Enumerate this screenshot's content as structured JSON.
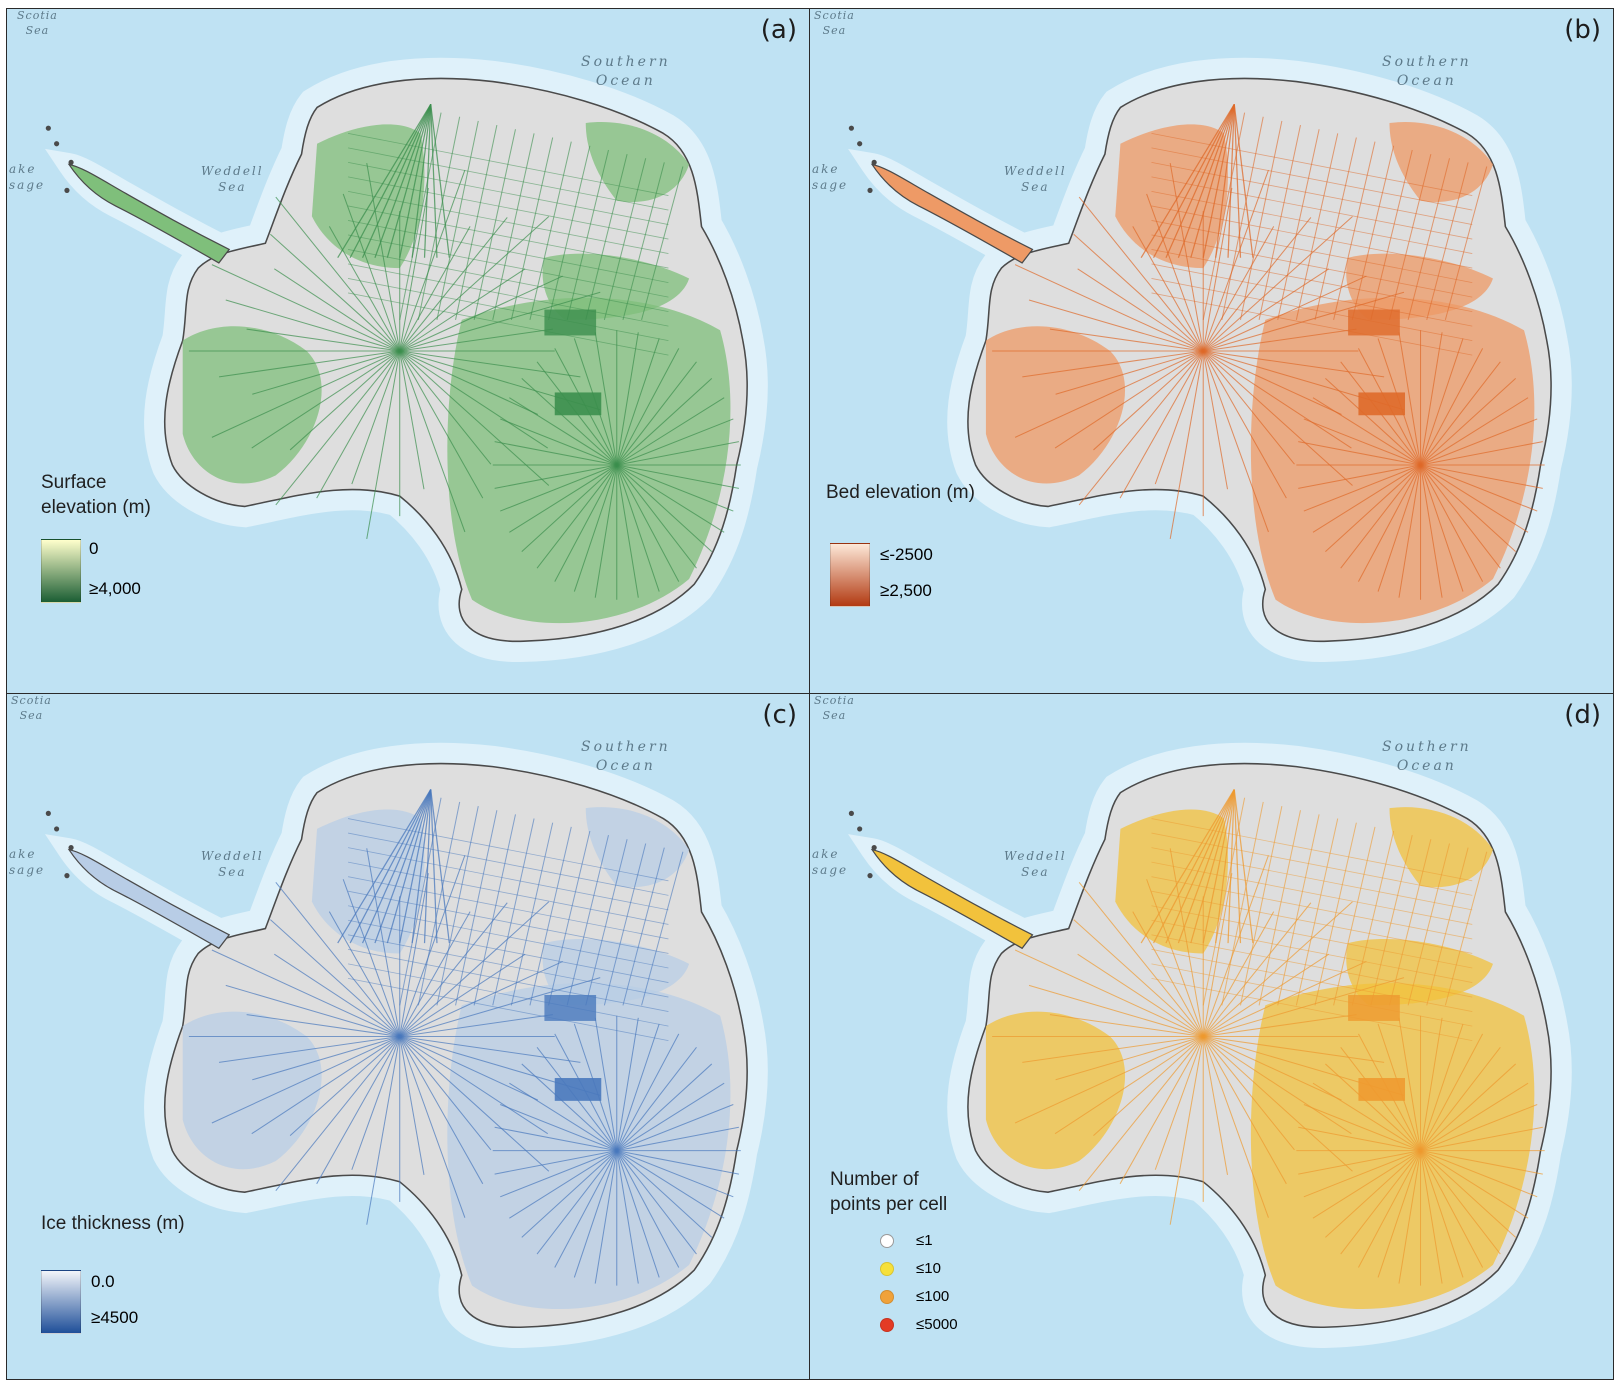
{
  "place_labels": {
    "scotia_sea": [
      "Scotia",
      "Sea"
    ],
    "southern_ocean": [
      "Southern",
      "Ocean"
    ],
    "weddell_sea": [
      "Weddell",
      "Sea"
    ],
    "drake_passage_fragment": [
      "ake",
      "sage"
    ]
  },
  "panels": {
    "a": {
      "label": "(a)",
      "legend_title": [
        "Surface",
        "elevation (m)"
      ],
      "legend_min": "0",
      "legend_max": "≥4,000",
      "ramp_colors": [
        "#ffffcc",
        "#1b5e34"
      ],
      "land_color": "#7fbf7b",
      "line_color": "#3c8f4e"
    },
    "b": {
      "label": "(b)",
      "legend_title": [
        "Bed elevation (m)"
      ],
      "legend_min": "≤-2500",
      "legend_max": "≥2,500",
      "ramp_colors": [
        "#fde8d8",
        "#b23a12"
      ],
      "land_color": "#ee9a66",
      "line_color": "#df6a2a"
    },
    "c": {
      "label": "(c)",
      "legend_title": [
        "Ice thickness (m)"
      ],
      "legend_min": "0.0",
      "legend_max": "≥4500",
      "ramp_colors": [
        "#f2f5fa",
        "#1f4f99"
      ],
      "land_color": "#b8cde6",
      "line_color": "#4a79bd"
    },
    "d": {
      "label": "(d)",
      "legend_title": [
        "Number of",
        "points per cell"
      ],
      "classes": [
        {
          "label": "≤1",
          "color": "#ffffff"
        },
        {
          "label": "≤10",
          "color": "#f6e03a"
        },
        {
          "label": "≤100",
          "color": "#f0a23a"
        },
        {
          "label": "≤5000",
          "color": "#e33b25"
        }
      ],
      "land_color": "#f2c23c",
      "line_color": "#ee9a30"
    }
  },
  "colors": {
    "ocean": "#bfe2f3",
    "shelf": "#dff1fa",
    "ice_gray": "#dedede",
    "coast": "#4a4a4a"
  }
}
